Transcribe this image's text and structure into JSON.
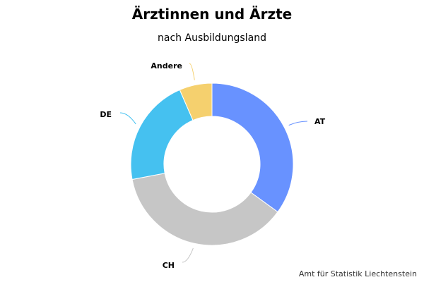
{
  "chart_data": {
    "type": "pie",
    "title": "Ärztinnen und Ärzte",
    "subtitle": "nach Ausbildungsland",
    "categories": [
      "AT",
      "CH",
      "DE",
      "Andere"
    ],
    "values": [
      35.0,
      37.0,
      21.5,
      6.5
    ],
    "colors": [
      "#6892ff",
      "#c6c6c6",
      "#45c1f0",
      "#f5d06e"
    ],
    "donut": true
  },
  "credit": "Amt für Statistik Liechtenstein"
}
